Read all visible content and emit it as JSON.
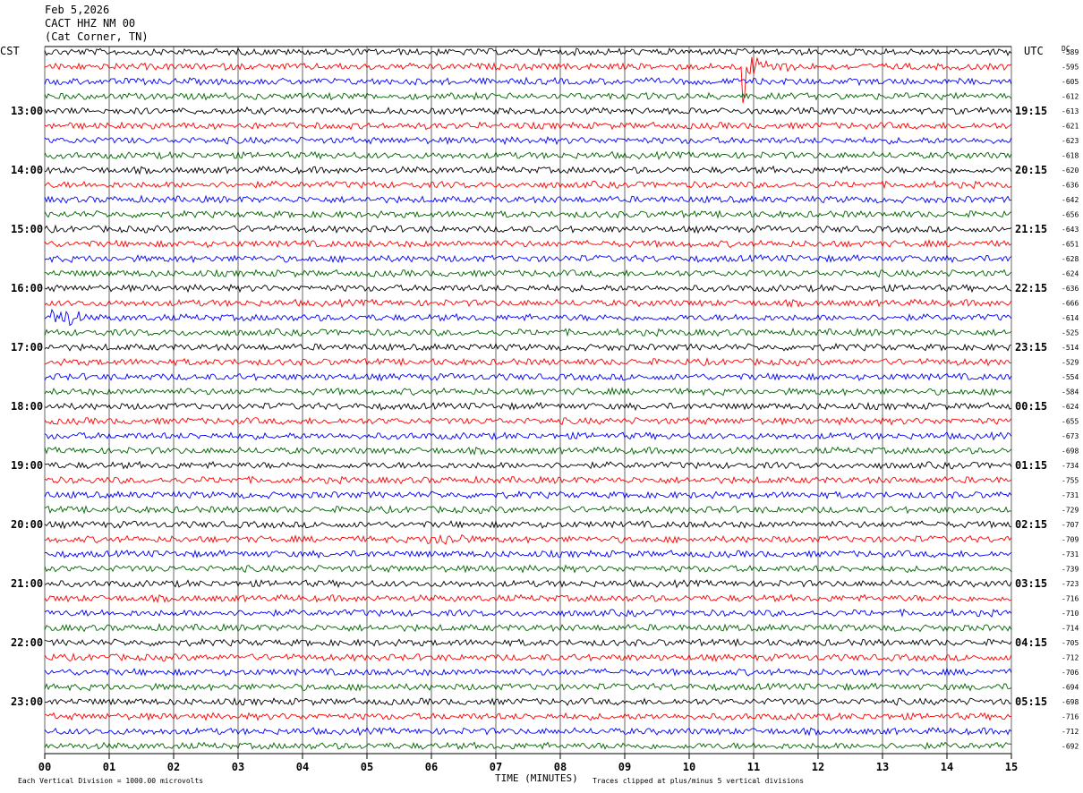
{
  "header": {
    "date": "Feb 5,2026",
    "station": "CACT HHZ NM 00",
    "location": "(Cat Corner, TN)"
  },
  "left_tz": "CST",
  "right_tz": "UTC",
  "dc_label": "DC",
  "footer": {
    "left": "Each Vertical Division = 1000.00 microvolts",
    "center": "TIME (MINUTES)",
    "right": "Traces clipped at plus/minus 5 vertical divisions"
  },
  "colors": {
    "trace_cycle": [
      "#000000",
      "#ff0000",
      "#0000ff",
      "#006400"
    ],
    "grid": "#000000"
  },
  "chart_data": {
    "type": "line",
    "title": "",
    "xlabel": "TIME (MINUTES)",
    "x_ticks": [
      "00",
      "01",
      "02",
      "03",
      "04",
      "05",
      "06",
      "07",
      "08",
      "09",
      "10",
      "11",
      "12",
      "13",
      "14",
      "15"
    ],
    "xlim": [
      0,
      15
    ],
    "left_hour_labels": [
      "13:00",
      "14:00",
      "15:00",
      "16:00",
      "17:00",
      "18:00",
      "19:00",
      "20:00",
      "21:00",
      "22:00",
      "23:00"
    ],
    "right_hour_labels": [
      "19:15",
      "20:15",
      "21:15",
      "22:15",
      "23:15",
      "00:15",
      "01:15",
      "02:15",
      "03:15",
      "04:15",
      "05:15"
    ],
    "dc_offsets": [
      "-589",
      "-595",
      "-605",
      "-612",
      "-613",
      "-621",
      "-623",
      "-618",
      "-620",
      "-636",
      "-642",
      "-656",
      "-643",
      "-651",
      "-628",
      "-624",
      "-636",
      "-666",
      "-614",
      "-525",
      "-514",
      "-529",
      "-554",
      "-584",
      "-624",
      "-655",
      "-673",
      "-698",
      "-734",
      "-755",
      "-731",
      "-729",
      "-707",
      "-709",
      "-731",
      "-739",
      "-723",
      "-716",
      "-710",
      "-714",
      "-705",
      "-712",
      "-706",
      "-694",
      "-698",
      "-716",
      "-712",
      "-692"
    ],
    "traces": 48,
    "minutes_per_trace": 15,
    "events": [
      {
        "trace": 1,
        "minute": 10.85,
        "amplitude": "clipped"
      },
      {
        "trace": 18,
        "minute": 0.3,
        "amplitude": "large"
      },
      {
        "trace": 33,
        "minute": 6.2,
        "amplitude": "moderate"
      }
    ]
  }
}
